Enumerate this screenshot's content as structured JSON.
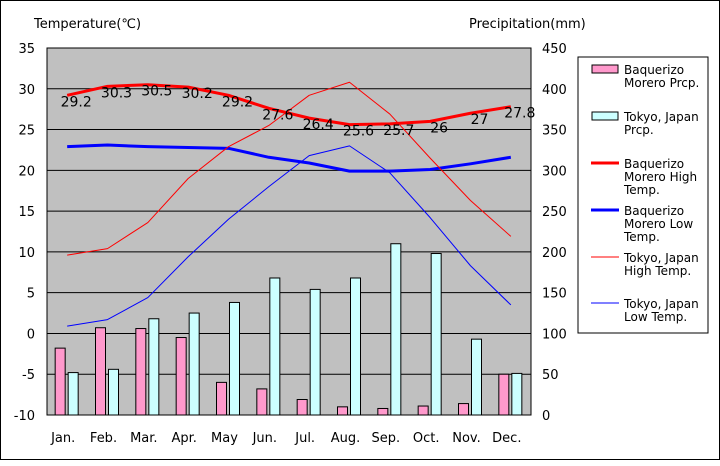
{
  "chart_data": {
    "type": "bar+line",
    "left_axis_title": "Temperature(℃)",
    "right_axis_title": "Precipitation(mm)",
    "left_ylim": [
      -10,
      35
    ],
    "left_ticks": [
      "35",
      "30",
      "25",
      "20",
      "15",
      "10",
      "5",
      "0",
      "-5",
      "-10"
    ],
    "right_ylim": [
      0,
      450
    ],
    "right_ticks": [
      "450",
      "400",
      "350",
      "300",
      "250",
      "200",
      "150",
      "100",
      "50",
      "0"
    ],
    "categories": [
      "Jan.",
      "Feb.",
      "Mar.",
      "Apr.",
      "May",
      "Jun.",
      "Jul.",
      "Aug.",
      "Sep.",
      "Oct.",
      "Nov.",
      "Dec."
    ],
    "bar_series": [
      {
        "name": "Baquerizo Morero Prcp.",
        "legend_label": "Baquerizo Morero Prcp.",
        "color": "#ff99cc",
        "values": [
          82,
          107,
          106,
          95,
          40,
          32,
          19,
          10,
          8,
          11,
          14,
          50
        ]
      },
      {
        "name": "Tokyo, Japan Prcp.",
        "legend_label": "Tokyo, Japan Prcp.",
        "color": "#ccffff",
        "values": [
          52,
          56,
          118,
          125,
          138,
          168,
          154,
          168,
          210,
          198,
          93,
          51
        ]
      }
    ],
    "line_series": [
      {
        "name": "Baquerizo Morero High Temp.",
        "legend_label": "Baquerizo Morero High Temp.",
        "color": "#ff0000",
        "width": 3,
        "values": [
          29.2,
          30.3,
          30.5,
          30.2,
          29.2,
          27.6,
          26.4,
          25.6,
          25.7,
          26.0,
          27.0,
          27.8
        ],
        "labels": [
          "29.2",
          "30.3",
          "30.5",
          "30.2",
          "29.2",
          "27.6",
          "26.4",
          "25.6",
          "25.7",
          "26",
          "27",
          "27.8"
        ]
      },
      {
        "name": "Baquerizo Morero Low Temp.",
        "legend_label": "Baquerizo Morero Low Temp.",
        "color": "#0000ff",
        "width": 3,
        "values": [
          22.9,
          23.1,
          22.9,
          22.8,
          22.7,
          21.6,
          20.9,
          19.9,
          19.9,
          20.1,
          20.8,
          21.6
        ]
      },
      {
        "name": "Tokyo, Japan High Temp.",
        "legend_label": "Tokyo, Japan High Temp.",
        "color": "#ff0000",
        "width": 1,
        "values": [
          9.6,
          10.4,
          13.6,
          19.0,
          22.9,
          25.5,
          29.2,
          30.8,
          26.9,
          21.5,
          16.3,
          11.9
        ]
      },
      {
        "name": "Tokyo, Japan Low Temp.",
        "legend_label": "Tokyo, Japan Low Temp.",
        "color": "#0000ff",
        "width": 1,
        "values": [
          0.9,
          1.7,
          4.4,
          9.4,
          14.0,
          18.0,
          21.8,
          23.0,
          19.7,
          14.2,
          8.3,
          3.5
        ]
      }
    ]
  }
}
